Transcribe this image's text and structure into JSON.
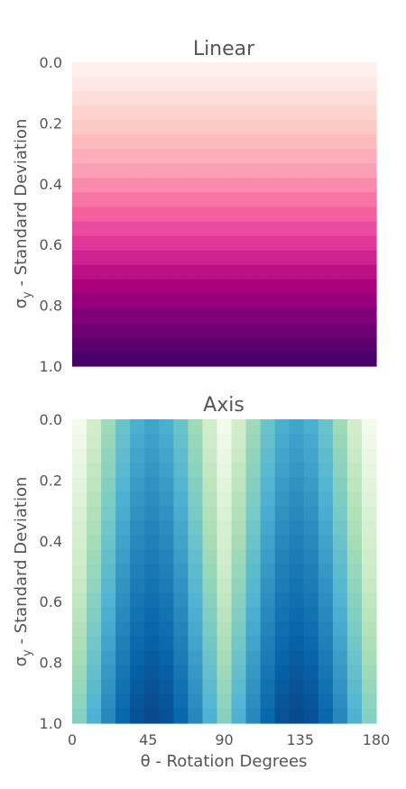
{
  "chart_data": [
    {
      "type": "heatmap",
      "title": "Linear",
      "colormap": "RdPu",
      "ylabel_main": "σ",
      "ylabel_sub": "y",
      "ylabel_rest": " - Standard Deviation",
      "xlabel": "",
      "ylim": [
        1.0,
        0.0
      ],
      "xlim": [
        0,
        180
      ],
      "y_ticks": [
        "0.0",
        "0.2",
        "0.4",
        "0.6",
        "0.8",
        "1.0"
      ],
      "x_ticks": [],
      "rows": 21,
      "cols": 21,
      "description": "each row has a constant value increasing linearly with σy; constant across θ"
    },
    {
      "type": "heatmap",
      "title": "Axis",
      "colormap": "GnBu",
      "ylabel_main": "σ",
      "ylabel_sub": "y",
      "ylabel_rest": " - Standard Deviation",
      "xlabel": "θ - Rotation Degrees",
      "ylim": [
        1.0,
        0.0
      ],
      "xlim": [
        0,
        180
      ],
      "y_ticks": [
        "0.0",
        "0.2",
        "0.4",
        "0.6",
        "0.8",
        "1.0"
      ],
      "x_ticks": [
        "0",
        "45",
        "90",
        "135",
        "180"
      ],
      "rows": 21,
      "cols": 21,
      "description": "values peak near θ = 45° and 135°, lowest near 0°, 90°, 180°; increase with σy"
    }
  ]
}
